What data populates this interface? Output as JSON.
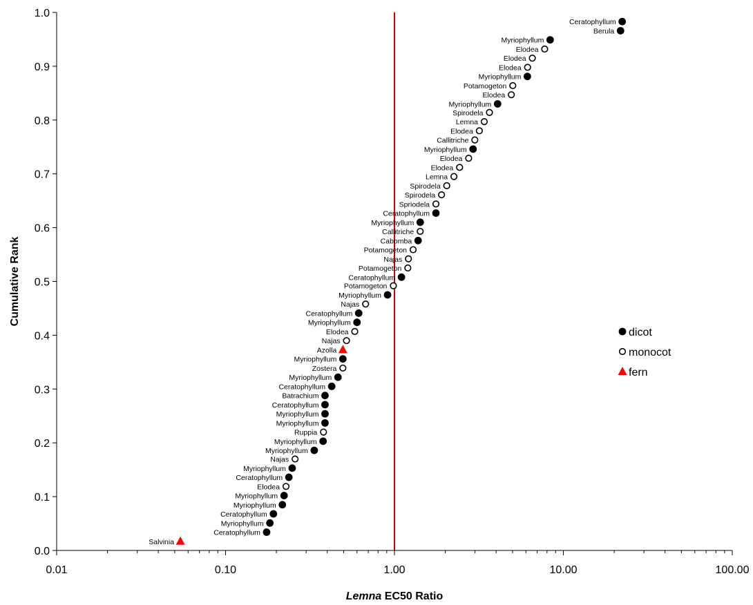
{
  "chart_data": {
    "type": "scatter",
    "xlabel_italic": "Lemna",
    "xlabel_rest": " EC50 Ratio",
    "ylabel": "Cumulative Rank",
    "x_scale": "log",
    "xlim": [
      0.01,
      100
    ],
    "ylim": [
      0,
      1
    ],
    "x_ticks": [
      "0.01",
      "0.10",
      "1.00",
      "10.00",
      "100.00"
    ],
    "y_ticks": [
      "0.0",
      "0.1",
      "0.2",
      "0.3",
      "0.4",
      "0.5",
      "0.6",
      "0.7",
      "0.8",
      "0.9",
      "1.0"
    ],
    "reference_line_x": 1.0,
    "reference_line_color": "#cc0000",
    "grid": false,
    "legend_position": "right",
    "legend": [
      {
        "key": "dicot",
        "label": "dicot"
      },
      {
        "key": "monocot",
        "label": "monocot"
      },
      {
        "key": "fern",
        "label": "fern"
      }
    ],
    "colors": {
      "dicot": "#000000",
      "monocot": "#ffffff",
      "fern": "#ff0000"
    },
    "points": [
      {
        "label": "Salvinia",
        "x": 0.054,
        "y": 0.017,
        "group": "fern"
      },
      {
        "label": "Ceratophyllum",
        "x": 0.175,
        "y": 0.034,
        "group": "dicot"
      },
      {
        "label": "Myriophyllum",
        "x": 0.183,
        "y": 0.051,
        "group": "dicot"
      },
      {
        "label": "Ceratophyllum",
        "x": 0.192,
        "y": 0.068,
        "group": "dicot"
      },
      {
        "label": "Myriophyllum",
        "x": 0.217,
        "y": 0.085,
        "group": "dicot"
      },
      {
        "label": "Myriophyllum",
        "x": 0.222,
        "y": 0.102,
        "group": "dicot"
      },
      {
        "label": "Elodea",
        "x": 0.228,
        "y": 0.119,
        "group": "monocot"
      },
      {
        "label": "Ceratophyllum",
        "x": 0.237,
        "y": 0.136,
        "group": "dicot"
      },
      {
        "label": "Myriophyllum",
        "x": 0.248,
        "y": 0.153,
        "group": "dicot"
      },
      {
        "label": "Najas",
        "x": 0.258,
        "y": 0.17,
        "group": "monocot"
      },
      {
        "label": "Myriophyllum",
        "x": 0.335,
        "y": 0.186,
        "group": "dicot"
      },
      {
        "label": "Myriophyllum",
        "x": 0.378,
        "y": 0.203,
        "group": "dicot"
      },
      {
        "label": "Ruppia",
        "x": 0.38,
        "y": 0.22,
        "group": "monocot"
      },
      {
        "label": "Myriophyllum",
        "x": 0.388,
        "y": 0.237,
        "group": "dicot"
      },
      {
        "label": "Myriophyllum",
        "x": 0.388,
        "y": 0.254,
        "group": "dicot"
      },
      {
        "label": "Ceratophyllum",
        "x": 0.388,
        "y": 0.271,
        "group": "dicot"
      },
      {
        "label": "Batrachium",
        "x": 0.388,
        "y": 0.288,
        "group": "dicot"
      },
      {
        "label": "Ceratophyllum",
        "x": 0.425,
        "y": 0.305,
        "group": "dicot"
      },
      {
        "label": "Myriophyllum",
        "x": 0.463,
        "y": 0.322,
        "group": "dicot"
      },
      {
        "label": "Zostera",
        "x": 0.495,
        "y": 0.339,
        "group": "monocot"
      },
      {
        "label": "Myriophyllum",
        "x": 0.495,
        "y": 0.356,
        "group": "dicot"
      },
      {
        "label": "Azolla",
        "x": 0.495,
        "y": 0.373,
        "group": "fern"
      },
      {
        "label": "Najas",
        "x": 0.52,
        "y": 0.39,
        "group": "monocot"
      },
      {
        "label": "Elodea",
        "x": 0.582,
        "y": 0.407,
        "group": "monocot"
      },
      {
        "label": "Myriophyllum",
        "x": 0.6,
        "y": 0.424,
        "group": "dicot"
      },
      {
        "label": "Ceratophyllum",
        "x": 0.614,
        "y": 0.441,
        "group": "dicot"
      },
      {
        "label": "Najas",
        "x": 0.675,
        "y": 0.458,
        "group": "monocot"
      },
      {
        "label": "Myriophyllum",
        "x": 0.91,
        "y": 0.475,
        "group": "dicot"
      },
      {
        "label": "Potamogeton",
        "x": 0.985,
        "y": 0.492,
        "group": "monocot"
      },
      {
        "label": "Ceratophyllum",
        "x": 1.1,
        "y": 0.508,
        "group": "dicot"
      },
      {
        "label": "Potamogeton",
        "x": 1.2,
        "y": 0.525,
        "group": "monocot"
      },
      {
        "label": "Najas",
        "x": 1.21,
        "y": 0.542,
        "group": "monocot"
      },
      {
        "label": "Potamogeton",
        "x": 1.29,
        "y": 0.559,
        "group": "monocot"
      },
      {
        "label": "Cabomba",
        "x": 1.38,
        "y": 0.576,
        "group": "dicot"
      },
      {
        "label": "Callitriche",
        "x": 1.42,
        "y": 0.593,
        "group": "monocot"
      },
      {
        "label": "Myriophyllum",
        "x": 1.42,
        "y": 0.61,
        "group": "dicot"
      },
      {
        "label": "Ceratophyllum",
        "x": 1.76,
        "y": 0.627,
        "group": "dicot"
      },
      {
        "label": "Spriodela",
        "x": 1.76,
        "y": 0.644,
        "group": "monocot"
      },
      {
        "label": "Spirodela",
        "x": 1.9,
        "y": 0.661,
        "group": "monocot"
      },
      {
        "label": "Spirodela",
        "x": 2.04,
        "y": 0.678,
        "group": "monocot"
      },
      {
        "label": "Lemna",
        "x": 2.25,
        "y": 0.695,
        "group": "monocot"
      },
      {
        "label": "Elodea",
        "x": 2.43,
        "y": 0.712,
        "group": "monocot"
      },
      {
        "label": "Elodea",
        "x": 2.75,
        "y": 0.729,
        "group": "monocot"
      },
      {
        "label": "Myriophyllum",
        "x": 2.92,
        "y": 0.746,
        "group": "dicot"
      },
      {
        "label": "Callitriche",
        "x": 2.99,
        "y": 0.763,
        "group": "monocot"
      },
      {
        "label": "Elodea",
        "x": 3.18,
        "y": 0.78,
        "group": "monocot"
      },
      {
        "label": "Lemna",
        "x": 3.4,
        "y": 0.797,
        "group": "monocot"
      },
      {
        "label": "Spirodela",
        "x": 3.65,
        "y": 0.814,
        "group": "monocot"
      },
      {
        "label": "Myriophyllum",
        "x": 4.08,
        "y": 0.83,
        "group": "dicot"
      },
      {
        "label": "Elodea",
        "x": 4.92,
        "y": 0.847,
        "group": "monocot"
      },
      {
        "label": "Potamogeton",
        "x": 5.02,
        "y": 0.864,
        "group": "monocot"
      },
      {
        "label": "Myriophyllum",
        "x": 6.12,
        "y": 0.881,
        "group": "dicot"
      },
      {
        "label": "Elodea",
        "x": 6.14,
        "y": 0.898,
        "group": "monocot"
      },
      {
        "label": "Elodea",
        "x": 6.55,
        "y": 0.915,
        "group": "monocot"
      },
      {
        "label": "Elodea",
        "x": 7.75,
        "y": 0.932,
        "group": "monocot"
      },
      {
        "label": "Myriophyllum",
        "x": 8.35,
        "y": 0.949,
        "group": "dicot"
      },
      {
        "label": "Berula",
        "x": 21.8,
        "y": 0.966,
        "group": "dicot"
      },
      {
        "label": "Ceratophyllum",
        "x": 22.3,
        "y": 0.983,
        "group": "dicot"
      }
    ]
  }
}
